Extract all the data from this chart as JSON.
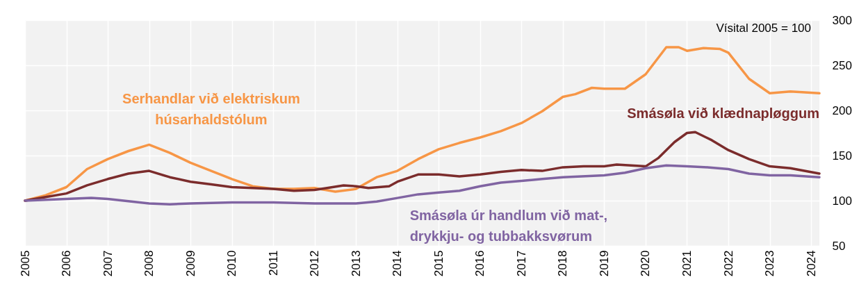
{
  "chart_data": {
    "type": "line",
    "annotations": [
      "Vísital 2005 = 100"
    ],
    "xlim": [
      2005,
      2024.2
    ],
    "xticks": [
      2005,
      2006,
      2007,
      2008,
      2009,
      2010,
      2011,
      2012,
      2013,
      2014,
      2015,
      2016,
      2017,
      2018,
      2019,
      2020,
      2021,
      2022,
      2023,
      2024
    ],
    "ylim": [
      50,
      300
    ],
    "yticks": [
      50,
      100,
      150,
      200,
      250,
      300
    ],
    "grid": true,
    "legend": false,
    "marker": "none",
    "line_style": "solid",
    "series": [
      {
        "name": "Serhandlar við elektriskum\nhúsarhaldstólum",
        "color": "#f79646",
        "x": [
          2005,
          2005.5,
          2006,
          2006.5,
          2007,
          2007.5,
          2008,
          2008.5,
          2009,
          2009.5,
          2010,
          2010.5,
          2011,
          2011.5,
          2012,
          2012.5,
          2013,
          2013.5,
          2014,
          2014.5,
          2015,
          2015.5,
          2016,
          2016.5,
          2017,
          2017.5,
          2018,
          2018.3,
          2018.7,
          2019,
          2019.5,
          2020,
          2020.5,
          2020.8,
          2021,
          2021.4,
          2021.8,
          2022,
          2022.5,
          2023,
          2023.5,
          2024.2
        ],
        "values": [
          100,
          106,
          115,
          135,
          146,
          155,
          162,
          153,
          142,
          133,
          124,
          116,
          113,
          113,
          114,
          110,
          113,
          126,
          133,
          146,
          157,
          164,
          170,
          177,
          186,
          199,
          215,
          218,
          225,
          224,
          224,
          240,
          270,
          270,
          266,
          269,
          268,
          264,
          235,
          219,
          221,
          219
        ]
      },
      {
        "name": "Smásøla við klædnapløggum",
        "color": "#7b2c2c",
        "x": [
          2005,
          2005.5,
          2006,
          2006.5,
          2007,
          2007.5,
          2008,
          2008.5,
          2009,
          2009.5,
          2010,
          2010.5,
          2011,
          2011.5,
          2012,
          2012.3,
          2012.7,
          2013,
          2013.3,
          2013.8,
          2014,
          2014.5,
          2015,
          2015.5,
          2016,
          2016.5,
          2017,
          2017.5,
          2018,
          2018.5,
          2019,
          2019.3,
          2020,
          2020.3,
          2020.7,
          2021,
          2021.2,
          2021.6,
          2022,
          2022.5,
          2023,
          2023.5,
          2024.2
        ],
        "values": [
          100,
          104,
          108,
          117,
          124,
          130,
          133,
          126,
          121,
          118,
          115,
          114,
          113,
          111,
          112,
          114,
          117,
          116,
          114,
          116,
          121,
          129,
          129,
          127,
          129,
          132,
          134,
          133,
          137,
          138,
          138,
          140,
          138,
          147,
          165,
          175,
          176,
          167,
          156,
          146,
          138,
          136,
          130
        ]
      },
      {
        "name": "Smásøla úr handlum við mat-,\ndrykkju- og tubbakksvørum",
        "color": "#8064a2",
        "x": [
          2005,
          2006,
          2006.6,
          2007,
          2008,
          2008.5,
          2009,
          2010,
          2011,
          2012,
          2013,
          2013.5,
          2014,
          2014.5,
          2015,
          2015.5,
          2016,
          2016.5,
          2017,
          2017.5,
          2018,
          2019,
          2019.5,
          2020,
          2020.5,
          2021,
          2021.5,
          2022,
          2022.5,
          2023,
          2023.5,
          2024.2
        ],
        "values": [
          100,
          102,
          103,
          102,
          97,
          96,
          97,
          98,
          98,
          97,
          97,
          99,
          103,
          107,
          109,
          111,
          116,
          120,
          122,
          124,
          126,
          128,
          131,
          136,
          139,
          138,
          137,
          135,
          130,
          128,
          128,
          126
        ]
      }
    ]
  }
}
